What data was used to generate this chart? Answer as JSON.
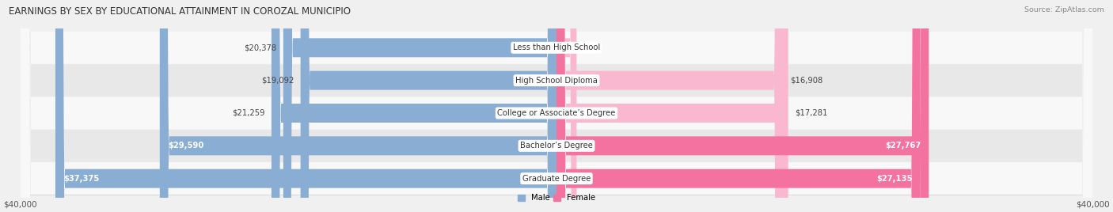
{
  "title": "EARNINGS BY SEX BY EDUCATIONAL ATTAINMENT IN COROZAL MUNICIPIO",
  "source": "Source: ZipAtlas.com",
  "categories": [
    "Less than High School",
    "High School Diploma",
    "College or Associate’s Degree",
    "Bachelor’s Degree",
    "Graduate Degree"
  ],
  "male_values": [
    20378,
    19092,
    21259,
    29590,
    37375
  ],
  "female_values": [
    0,
    16908,
    17281,
    27767,
    27135
  ],
  "male_color": "#8aadd4",
  "female_color": "#f472a0",
  "female_light_color": "#f9b8d0",
  "axis_max": 40000,
  "bar_height": 0.58,
  "background_color": "#f0f0f0",
  "row_bg_light": "#f8f8f8",
  "row_bg_dark": "#e8e8e8",
  "title_fontsize": 8.5,
  "label_fontsize": 7.2,
  "tick_fontsize": 7.5,
  "source_fontsize": 6.8,
  "inside_label_threshold": 26000
}
